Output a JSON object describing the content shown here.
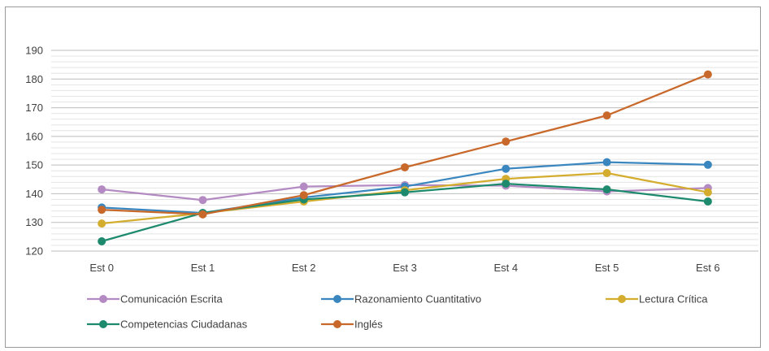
{
  "chart_data": {
    "type": "line",
    "categories": [
      "Est 0",
      "Est 1",
      "Est 2",
      "Est 3",
      "Est 4",
      "Est 5",
      "Est 6"
    ],
    "ylim": [
      120,
      190
    ],
    "yticks": [
      "120",
      "130",
      "140",
      "150",
      "160",
      "170",
      "180",
      "190"
    ],
    "grid": true,
    "legend_position": "bottom",
    "series": [
      {
        "name": "Comunicación Escrita",
        "color": "#b48ac2",
        "values": [
          141.5,
          137.8,
          142.5,
          143.0,
          142.8,
          140.8,
          142.0
        ]
      },
      {
        "name": "Razonamiento Cuantitativo",
        "color": "#3a87c0",
        "values": [
          135.2,
          133.3,
          138.7,
          142.5,
          148.7,
          151.0,
          150.1
        ]
      },
      {
        "name": "Lectura Crítica",
        "color": "#d4ad2f",
        "values": [
          129.6,
          133.2,
          137.3,
          141.2,
          145.2,
          147.2,
          140.5
        ]
      },
      {
        "name": "Competencias Ciudadanas",
        "color": "#1d8a6e",
        "values": [
          123.4,
          133.3,
          138.0,
          140.5,
          143.5,
          141.5,
          137.3
        ]
      },
      {
        "name": "Inglés",
        "color": "#c8692b",
        "values": [
          134.4,
          132.8,
          139.5,
          149.2,
          158.2,
          167.3,
          181.6
        ]
      }
    ]
  }
}
